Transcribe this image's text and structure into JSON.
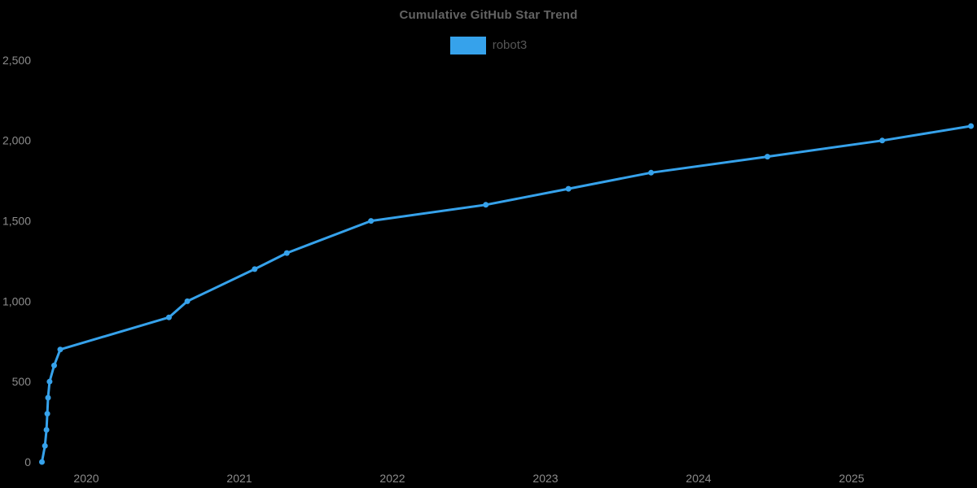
{
  "chart_data": {
    "type": "line",
    "title": "Cumulative GitHub Star Trend",
    "legend": [
      "robot3"
    ],
    "legend_position": "top-center",
    "xlabel": "",
    "ylabel": "",
    "x_unit": "decimal_year",
    "x_ticks": [
      2020,
      2021,
      2022,
      2023,
      2024,
      2025
    ],
    "x_tick_labels": [
      "2020",
      "2021",
      "2022",
      "2023",
      "2024",
      "2025"
    ],
    "xlim": [
      2019.44,
      2025.82
    ],
    "y_ticks": [
      0,
      500,
      1000,
      1500,
      2000,
      2500
    ],
    "y_tick_labels": [
      "0",
      "500",
      "1,000",
      "1,500",
      "2,000",
      "2,500"
    ],
    "ylim": [
      0,
      2500
    ],
    "grid": false,
    "axis_lines": false,
    "series": [
      {
        "name": "robot3",
        "color": "#36a2eb",
        "marker": "circle",
        "points": [
          {
            "x": 2019.71,
            "y": 0
          },
          {
            "x": 2019.73,
            "y": 100
          },
          {
            "x": 2019.74,
            "y": 200
          },
          {
            "x": 2019.745,
            "y": 300
          },
          {
            "x": 2019.75,
            "y": 400
          },
          {
            "x": 2019.76,
            "y": 500
          },
          {
            "x": 2019.79,
            "y": 600
          },
          {
            "x": 2019.83,
            "y": 700
          },
          {
            "x": 2020.54,
            "y": 900
          },
          {
            "x": 2020.66,
            "y": 1000
          },
          {
            "x": 2021.1,
            "y": 1200
          },
          {
            "x": 2021.31,
            "y": 1300
          },
          {
            "x": 2021.86,
            "y": 1500
          },
          {
            "x": 2022.61,
            "y": 1600
          },
          {
            "x": 2023.15,
            "y": 1700
          },
          {
            "x": 2023.69,
            "y": 1800
          },
          {
            "x": 2024.45,
            "y": 1900
          },
          {
            "x": 2025.2,
            "y": 2000
          },
          {
            "x": 2025.78,
            "y": 2090
          }
        ]
      }
    ]
  },
  "colors": {
    "background": "#000000",
    "line": "#36a2eb",
    "title_text": "#636363",
    "legend_text": "#565656",
    "tick_text": "#8c8c8c"
  }
}
